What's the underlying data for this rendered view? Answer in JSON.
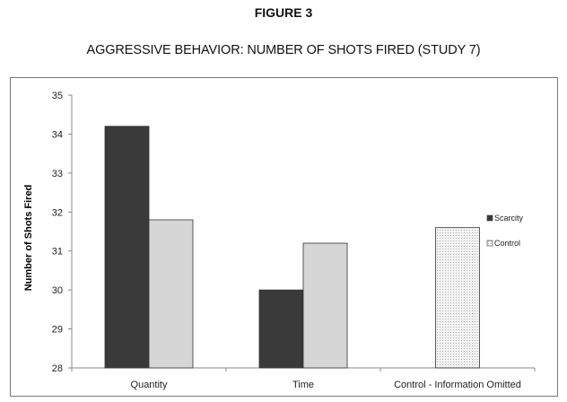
{
  "figure_label": "FIGURE 3",
  "figure_title": "AGGRESSIVE BEHAVIOR: NUMBER OF SHOTS FIRED (STUDY 7)",
  "colors": {
    "scarcity": "#3a3a3a",
    "control": "#d6d6d6",
    "control_info_omitted": "#f0f0f0",
    "bar_stroke": "#333333",
    "axis": "#888888"
  },
  "chart_data": {
    "type": "bar",
    "title": "",
    "xlabel": "",
    "ylabel": "Number of Shots Fired",
    "ylim": [
      28,
      35
    ],
    "yticks": [
      28,
      29,
      30,
      31,
      32,
      33,
      34,
      35
    ],
    "categories": [
      "Quantity",
      "Time",
      "Control - Information Omitted"
    ],
    "series": [
      {
        "name": "Scarcity",
        "values": [
          34.2,
          30.0,
          null
        ]
      },
      {
        "name": "Control",
        "values": [
          31.8,
          31.2,
          31.6
        ]
      }
    ],
    "grid": false,
    "legend_position": "right"
  }
}
